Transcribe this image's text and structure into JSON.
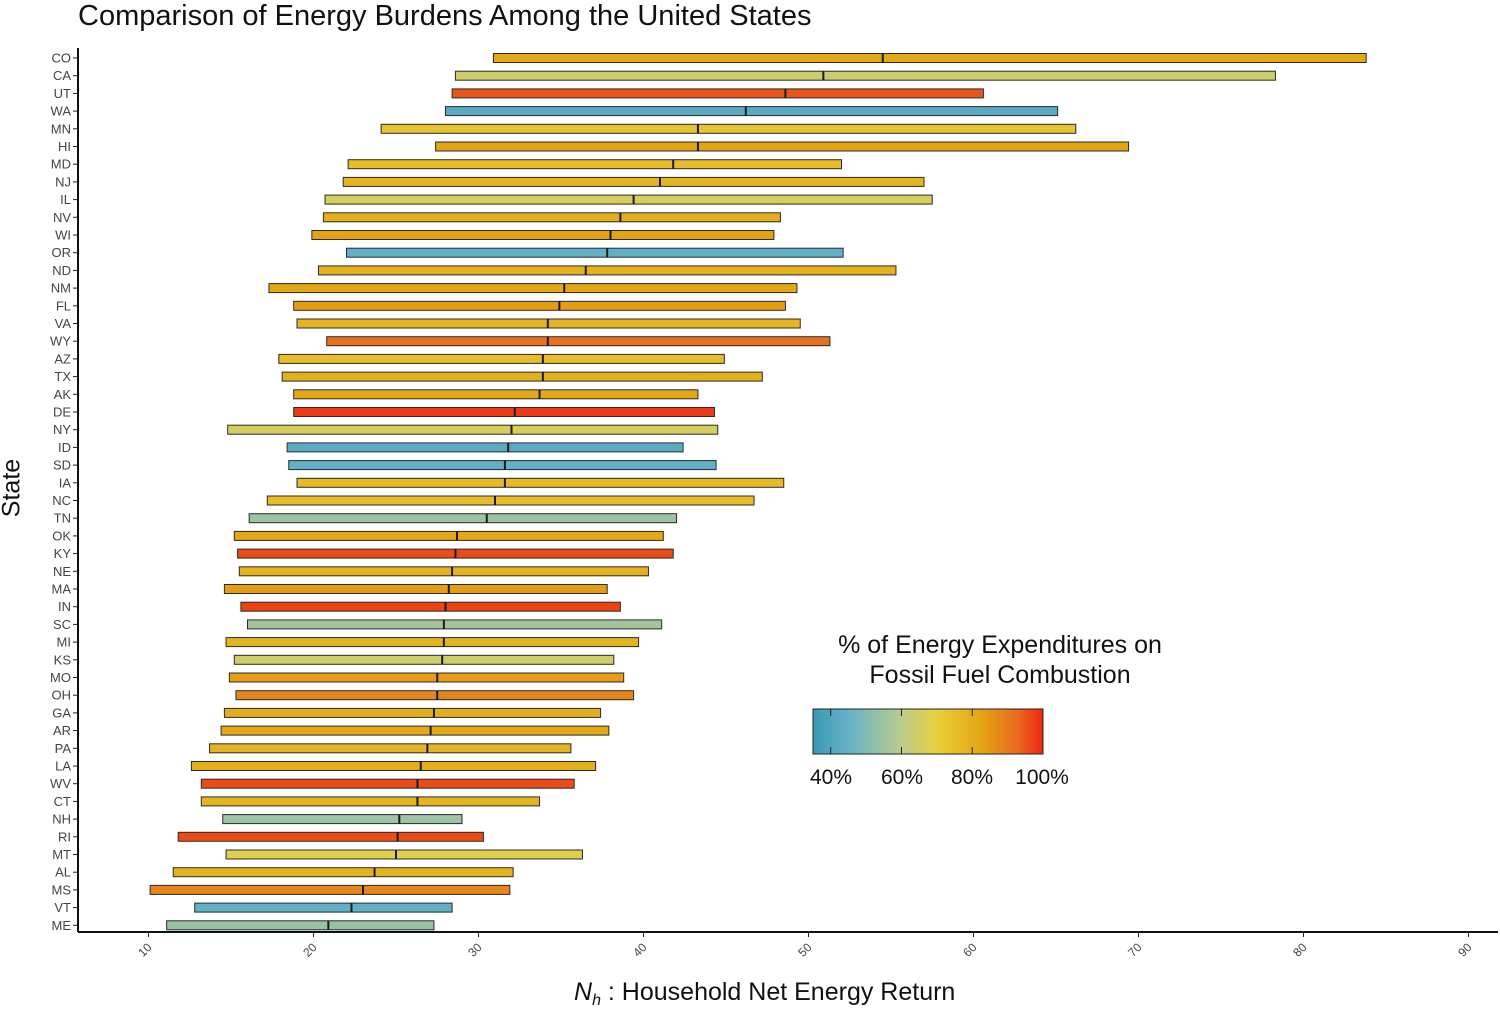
{
  "chart_data": {
    "type": "range-bar",
    "title": "Comparison of Energy Burdens Among the United States",
    "xlabel": {
      "var": "N",
      "sub": "h",
      "text": " : Household Net Energy Return"
    },
    "ylabel": "State",
    "xlim": [
      5.5,
      92
    ],
    "xticks": [
      "10",
      "20",
      "30",
      "40",
      "50",
      "60",
      "70",
      "80",
      "90"
    ],
    "legend": {
      "title_line1": "% of Energy Expenditures on",
      "title_line2": "Fossil Fuel Combustion",
      "ticks": [
        "40%",
        "60%",
        "80%",
        "100%"
      ],
      "range": [
        35,
        100
      ]
    },
    "states": [
      {
        "state": "CO",
        "min": 30.9,
        "median": 54.5,
        "max": 83.8,
        "fossil_pct": 82
      },
      {
        "state": "CA",
        "min": 28.6,
        "median": 50.9,
        "max": 78.3,
        "fossil_pct": 64
      },
      {
        "state": "UT",
        "min": 28.4,
        "median": 48.6,
        "max": 60.6,
        "fossil_pct": 95
      },
      {
        "state": "WA",
        "min": 28.0,
        "median": 46.2,
        "max": 65.1,
        "fossil_pct": 42
      },
      {
        "state": "MN",
        "min": 24.1,
        "median": 43.3,
        "max": 66.2,
        "fossil_pct": 74
      },
      {
        "state": "HI",
        "min": 27.4,
        "median": 43.3,
        "max": 69.4,
        "fossil_pct": 83
      },
      {
        "state": "MD",
        "min": 22.1,
        "median": 41.8,
        "max": 52.0,
        "fossil_pct": 76
      },
      {
        "state": "NJ",
        "min": 21.8,
        "median": 41.0,
        "max": 57.0,
        "fossil_pct": 78
      },
      {
        "state": "IL",
        "min": 20.7,
        "median": 39.4,
        "max": 57.5,
        "fossil_pct": 66
      },
      {
        "state": "NV",
        "min": 20.6,
        "median": 38.6,
        "max": 48.3,
        "fossil_pct": 80
      },
      {
        "state": "WI",
        "min": 19.9,
        "median": 38.0,
        "max": 47.9,
        "fossil_pct": 83
      },
      {
        "state": "OR",
        "min": 22.0,
        "median": 37.8,
        "max": 52.1,
        "fossil_pct": 44
      },
      {
        "state": "ND",
        "min": 20.3,
        "median": 36.5,
        "max": 55.3,
        "fossil_pct": 79
      },
      {
        "state": "NM",
        "min": 17.3,
        "median": 35.2,
        "max": 49.3,
        "fossil_pct": 82
      },
      {
        "state": "FL",
        "min": 18.8,
        "median": 34.9,
        "max": 48.6,
        "fossil_pct": 84
      },
      {
        "state": "VA",
        "min": 19.0,
        "median": 34.2,
        "max": 49.5,
        "fossil_pct": 78
      },
      {
        "state": "WY",
        "min": 20.8,
        "median": 34.2,
        "max": 51.3,
        "fossil_pct": 92
      },
      {
        "state": "AZ",
        "min": 17.9,
        "median": 33.9,
        "max": 44.9,
        "fossil_pct": 76
      },
      {
        "state": "TX",
        "min": 18.1,
        "median": 33.9,
        "max": 47.2,
        "fossil_pct": 80
      },
      {
        "state": "AK",
        "min": 18.8,
        "median": 33.7,
        "max": 43.3,
        "fossil_pct": 82
      },
      {
        "state": "DE",
        "min": 18.8,
        "median": 32.2,
        "max": 44.3,
        "fossil_pct": 98
      },
      {
        "state": "NY",
        "min": 14.8,
        "median": 32.0,
        "max": 44.5,
        "fossil_pct": 66
      },
      {
        "state": "ID",
        "min": 18.4,
        "median": 31.8,
        "max": 42.4,
        "fossil_pct": 42
      },
      {
        "state": "SD",
        "min": 18.5,
        "median": 31.6,
        "max": 44.4,
        "fossil_pct": 44
      },
      {
        "state": "IA",
        "min": 19.0,
        "median": 31.6,
        "max": 48.5,
        "fossil_pct": 77
      },
      {
        "state": "NC",
        "min": 17.2,
        "median": 31.0,
        "max": 46.7,
        "fossil_pct": 76
      },
      {
        "state": "TN",
        "min": 16.1,
        "median": 30.5,
        "max": 42.0,
        "fossil_pct": 55
      },
      {
        "state": "OK",
        "min": 15.2,
        "median": 28.7,
        "max": 41.2,
        "fossil_pct": 82
      },
      {
        "state": "KY",
        "min": 15.4,
        "median": 28.6,
        "max": 41.8,
        "fossil_pct": 96
      },
      {
        "state": "NE",
        "min": 15.5,
        "median": 28.4,
        "max": 40.3,
        "fossil_pct": 79
      },
      {
        "state": "MA",
        "min": 14.6,
        "median": 28.2,
        "max": 37.8,
        "fossil_pct": 84
      },
      {
        "state": "IN",
        "min": 15.6,
        "median": 28.0,
        "max": 38.6,
        "fossil_pct": 97
      },
      {
        "state": "SC",
        "min": 16.0,
        "median": 27.9,
        "max": 41.1,
        "fossil_pct": 56
      },
      {
        "state": "MI",
        "min": 14.7,
        "median": 27.9,
        "max": 39.7,
        "fossil_pct": 78
      },
      {
        "state": "KS",
        "min": 15.2,
        "median": 27.8,
        "max": 38.2,
        "fossil_pct": 64
      },
      {
        "state": "MO",
        "min": 14.9,
        "median": 27.5,
        "max": 38.8,
        "fossil_pct": 84
      },
      {
        "state": "OH",
        "min": 15.3,
        "median": 27.5,
        "max": 39.4,
        "fossil_pct": 88
      },
      {
        "state": "GA",
        "min": 14.6,
        "median": 27.3,
        "max": 37.4,
        "fossil_pct": 80
      },
      {
        "state": "AR",
        "min": 14.4,
        "median": 27.1,
        "max": 37.9,
        "fossil_pct": 82
      },
      {
        "state": "PA",
        "min": 13.7,
        "median": 26.9,
        "max": 35.6,
        "fossil_pct": 78
      },
      {
        "state": "LA",
        "min": 12.6,
        "median": 26.5,
        "max": 37.1,
        "fossil_pct": 80
      },
      {
        "state": "WV",
        "min": 13.2,
        "median": 26.3,
        "max": 35.8,
        "fossil_pct": 96
      },
      {
        "state": "CT",
        "min": 13.2,
        "median": 26.3,
        "max": 33.7,
        "fossil_pct": 78
      },
      {
        "state": "NH",
        "min": 14.5,
        "median": 25.2,
        "max": 29.0,
        "fossil_pct": 55
      },
      {
        "state": "RI",
        "min": 11.8,
        "median": 25.1,
        "max": 30.3,
        "fossil_pct": 96
      },
      {
        "state": "MT",
        "min": 14.7,
        "median": 25.0,
        "max": 36.3,
        "fossil_pct": 68
      },
      {
        "state": "AL",
        "min": 11.5,
        "median": 23.7,
        "max": 32.1,
        "fossil_pct": 79
      },
      {
        "state": "MS",
        "min": 10.1,
        "median": 23.0,
        "max": 31.9,
        "fossil_pct": 88
      },
      {
        "state": "VT",
        "min": 12.8,
        "median": 22.3,
        "max": 28.4,
        "fossil_pct": 44
      },
      {
        "state": "ME",
        "min": 11.1,
        "median": 20.9,
        "max": 27.3,
        "fossil_pct": 54
      }
    ]
  }
}
